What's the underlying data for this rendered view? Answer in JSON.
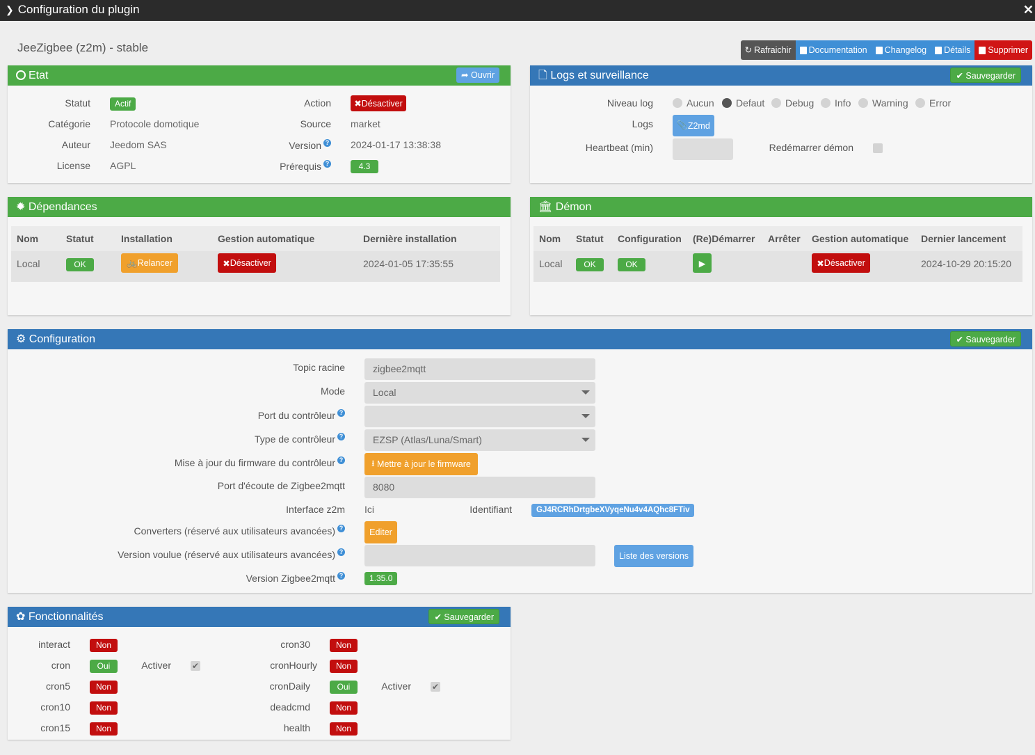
{
  "window": {
    "title": "Configuration du plugin"
  },
  "plugin_name": "JeeZigbee (z2m) - stable",
  "top_buttons": {
    "refresh": "Rafraichir",
    "documentation": "Documentation",
    "changelog": "Changelog",
    "details": "Détails",
    "delete": "Supprimer"
  },
  "etat": {
    "title": "Etat",
    "open": "Ouvrir",
    "statut_label": "Statut",
    "statut_value": "Actif",
    "categorie_label": "Catégorie",
    "categorie_value": "Protocole domotique",
    "auteur_label": "Auteur",
    "auteur_value": "Jeedom SAS",
    "license_label": "License",
    "license_value": "AGPL",
    "action_label": "Action",
    "action_value": "Désactiver",
    "source_label": "Source",
    "source_value": "market",
    "version_label": "Version",
    "version_value": "2024-01-17 13:38:38",
    "prerequis_label": "Prérequis",
    "prerequis_value": "4.3"
  },
  "logs": {
    "title": "Logs et surveillance",
    "save": "Sauvegarder",
    "niveau_label": "Niveau log",
    "levels": [
      "Aucun",
      "Defaut",
      "Debug",
      "Info",
      "Warning",
      "Error"
    ],
    "selected_level": "Defaut",
    "logs_label": "Logs",
    "logs_button": "Z2md",
    "heartbeat_label": "Heartbeat (min)",
    "restart_label": "Redémarrer démon"
  },
  "dependances": {
    "title": "Dépendances",
    "headers": [
      "Nom",
      "Statut",
      "Installation",
      "Gestion automatique",
      "Dernière installation"
    ],
    "row": {
      "nom": "Local",
      "statut": "OK",
      "installation": "Relancer",
      "gestion": "Désactiver",
      "derniere": "2024-01-05 17:35:55"
    }
  },
  "demon": {
    "title": "Démon",
    "headers": [
      "Nom",
      "Statut",
      "Configuration",
      "(Re)Démarrer",
      "Arrêter",
      "Gestion automatique",
      "Dernier lancement"
    ],
    "row": {
      "nom": "Local",
      "statut": "OK",
      "configuration": "OK",
      "gestion": "Désactiver",
      "dernier": "2024-10-29 20:15:20"
    }
  },
  "configuration": {
    "title": "Configuration",
    "save": "Sauvegarder",
    "topic_label": "Topic racine",
    "topic_value": "zigbee2mqtt",
    "mode_label": "Mode",
    "mode_value": "Local",
    "port_label": "Port du contrôleur",
    "port_value": "",
    "type_label": "Type de contrôleur",
    "type_value": "EZSP (Atlas/Luna/Smart)",
    "firmware_label": "Mise à jour du firmware du contrôleur",
    "firmware_button": "Mettre à jour le firmware",
    "ecoute_label": "Port d'écoute de Zigbee2mqtt",
    "ecoute_value": "8080",
    "interface_label": "Interface z2m",
    "interface_value": "Ici",
    "identifiant_label": "Identifiant",
    "identifiant_value": "GJ4RCRhDrtgbeXVyqeNu4v4AQhc8FTiv",
    "converters_label": "Converters (réservé aux utilisateurs avancées)",
    "converters_button": "Editer",
    "version_voulue_label": "Version voulue (réservé aux utilisateurs avancées)",
    "liste_versions": "Liste des versions",
    "version_z2m_label": "Version Zigbee2mqtt",
    "version_z2m_value": "1.35.0"
  },
  "fonctionnalites": {
    "title": "Fonctionnalités",
    "save": "Sauvegarder",
    "activer": "Activer",
    "left": [
      {
        "name": "interact",
        "status": "Non"
      },
      {
        "name": "cron",
        "status": "Oui"
      },
      {
        "name": "cron5",
        "status": "Non"
      },
      {
        "name": "cron10",
        "status": "Non"
      },
      {
        "name": "cron15",
        "status": "Non"
      }
    ],
    "right": [
      {
        "name": "cron30",
        "status": "Non"
      },
      {
        "name": "cronHourly",
        "status": "Non"
      },
      {
        "name": "cronDaily",
        "status": "Oui"
      },
      {
        "name": "deadcmd",
        "status": "Non"
      },
      {
        "name": "health",
        "status": "Non"
      }
    ]
  }
}
